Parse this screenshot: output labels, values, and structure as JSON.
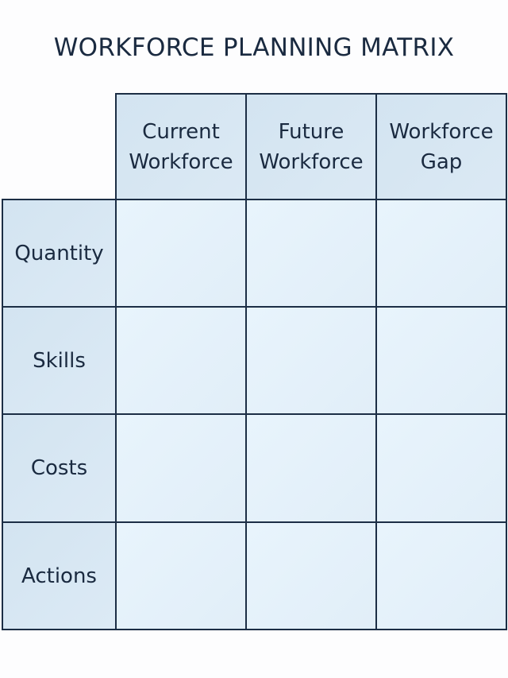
{
  "title": "WORKFORCE PLANNING MATRIX",
  "columns": [
    "Current\nWorkforce",
    "Future\nWorkforce",
    "Workforce\nGap"
  ],
  "rows": [
    "Quantity",
    "Skills",
    "Costs",
    "Actions"
  ],
  "colors": {
    "border": "#1c2e45",
    "header_fill": "#d6e6f2",
    "cell_fill": "#e6f2fb",
    "text": "#1a2a40"
  }
}
